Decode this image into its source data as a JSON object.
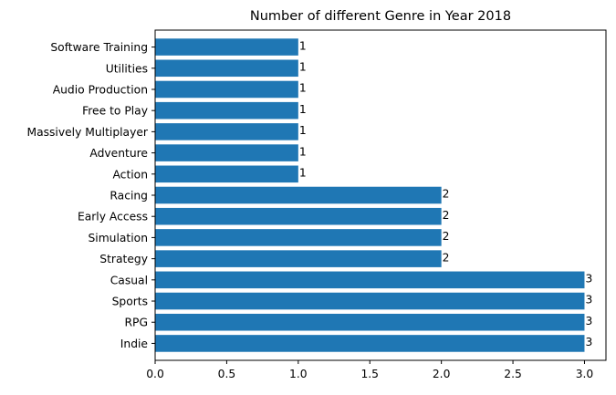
{
  "chart_data": {
    "type": "bar",
    "orientation": "horizontal",
    "title": "Number of different Genre in Year 2018",
    "xlabel": "",
    "ylabel": "",
    "categories": [
      "Indie",
      "RPG",
      "Sports",
      "Casual",
      "Strategy",
      "Simulation",
      "Early Access",
      "Racing",
      "Action",
      "Adventure",
      "Massively Multiplayer",
      "Free to Play",
      "Audio Production",
      "Utilities",
      "Software Training"
    ],
    "values": [
      3,
      3,
      3,
      3,
      2,
      2,
      2,
      2,
      1,
      1,
      1,
      1,
      1,
      1,
      1
    ],
    "data_labels": [
      "3",
      "3",
      "3",
      "3",
      "2",
      "2",
      "2",
      "2",
      "1",
      "1",
      "1",
      "1",
      "1",
      "1",
      "1"
    ],
    "xlim": [
      0,
      3.15
    ],
    "xticks": [
      0.0,
      0.5,
      1.0,
      1.5,
      2.0,
      2.5,
      3.0
    ],
    "xtick_labels": [
      "0.0",
      "0.5",
      "1.0",
      "1.5",
      "2.0",
      "2.5",
      "3.0"
    ],
    "bar_color": "#1f77b4",
    "grid": false,
    "legend": "none"
  }
}
